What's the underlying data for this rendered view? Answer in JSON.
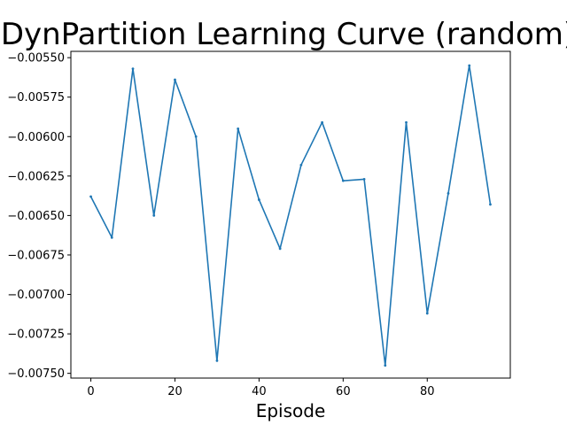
{
  "chart_data": {
    "type": "line",
    "title": "DynPartition Learning Curve (random)",
    "xlabel": "Episode",
    "ylabel": "",
    "xlim": [
      -4.75,
      99.75
    ],
    "ylim": [
      -0.00753,
      -0.00546
    ],
    "xticks": [
      0,
      20,
      40,
      60,
      80
    ],
    "xtick_labels": [
      "0",
      "20",
      "40",
      "60",
      "80"
    ],
    "yticks": [
      -0.0055,
      -0.00575,
      -0.006,
      -0.00625,
      -0.0065,
      -0.00675,
      -0.007,
      -0.00725,
      -0.0075
    ],
    "ytick_labels": [
      "−0.00550",
      "−0.00575",
      "−0.00600",
      "−0.00625",
      "−0.00650",
      "−0.00675",
      "−0.00700",
      "−0.00725",
      "−0.00750"
    ],
    "grid": false,
    "series": [
      {
        "color": "#1f77b4",
        "x": [
          0,
          5,
          10,
          15,
          20,
          25,
          30,
          35,
          40,
          45,
          50,
          55,
          60,
          65,
          70,
          75,
          80,
          85,
          90,
          95
        ],
        "y": [
          -0.00638,
          -0.00664,
          -0.00557,
          -0.0065,
          -0.00564,
          -0.006,
          -0.00742,
          -0.00595,
          -0.0064,
          -0.00671,
          -0.00618,
          -0.00591,
          -0.00628,
          -0.00627,
          -0.00745,
          -0.00591,
          -0.00712,
          -0.00636,
          -0.00555,
          -0.00643
        ]
      }
    ]
  }
}
